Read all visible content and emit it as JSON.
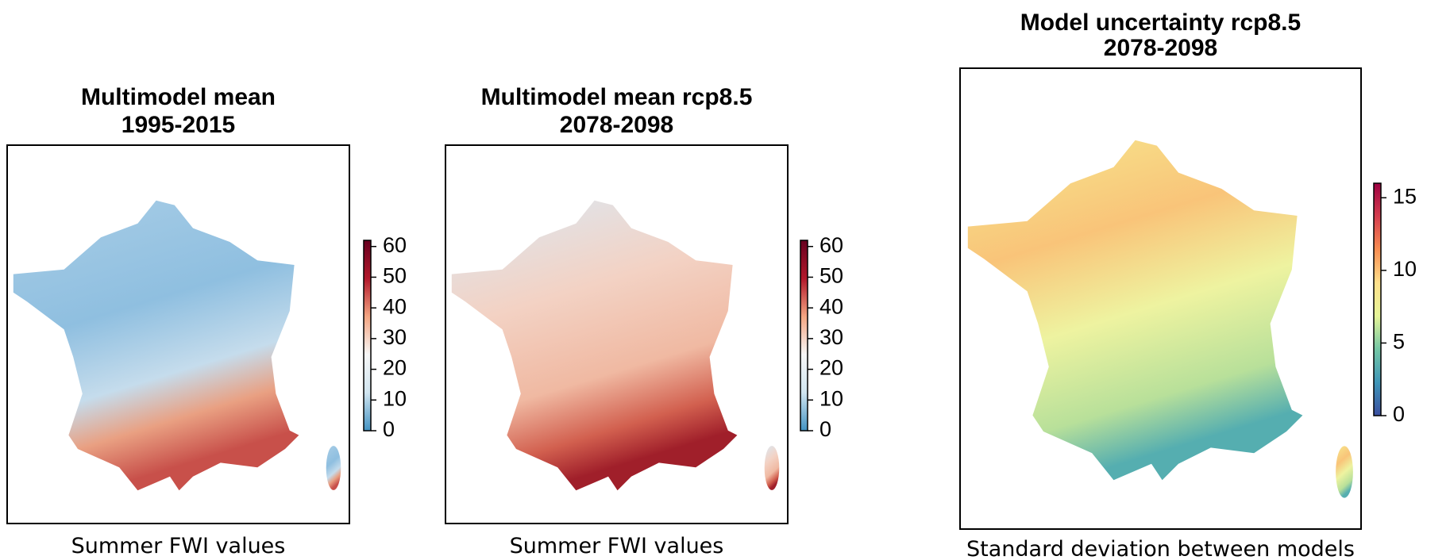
{
  "chart_data": [
    {
      "type": "map",
      "title": "Multimodel mean",
      "subtitle": "1995-2015",
      "caption": "Summer FWI values",
      "colorbar_lim": [
        0,
        62
      ],
      "colorbar_ticks": [
        0,
        10,
        20,
        30,
        40,
        50,
        60
      ],
      "colormap": [
        "#4393c3",
        "#d1e5f0",
        "#f7f7f7",
        "#f4a582",
        "#b2182b",
        "#67001f"
      ]
    },
    {
      "type": "map",
      "title": "Multimodel mean rcp8.5",
      "subtitle": "2078-2098",
      "caption": "Summer FWI values",
      "colorbar_lim": [
        0,
        62
      ],
      "colorbar_ticks": [
        0,
        10,
        20,
        30,
        40,
        50,
        60
      ],
      "colormap": [
        "#4393c3",
        "#d1e5f0",
        "#f7f7f7",
        "#f4a582",
        "#b2182b",
        "#67001f"
      ]
    },
    {
      "type": "map",
      "title": "Model uncertainty rcp8.5",
      "subtitle": "2078-2098",
      "caption": "Standard deviation between models",
      "colorbar_lim": [
        0,
        16
      ],
      "colorbar_ticks": [
        0,
        5,
        10,
        15
      ],
      "colormap": [
        "#3b4fa0",
        "#3f96b8",
        "#74c7a5",
        "#e6f598",
        "#fee08b",
        "#f98e52",
        "#d53e4f",
        "#9e0142"
      ]
    }
  ]
}
